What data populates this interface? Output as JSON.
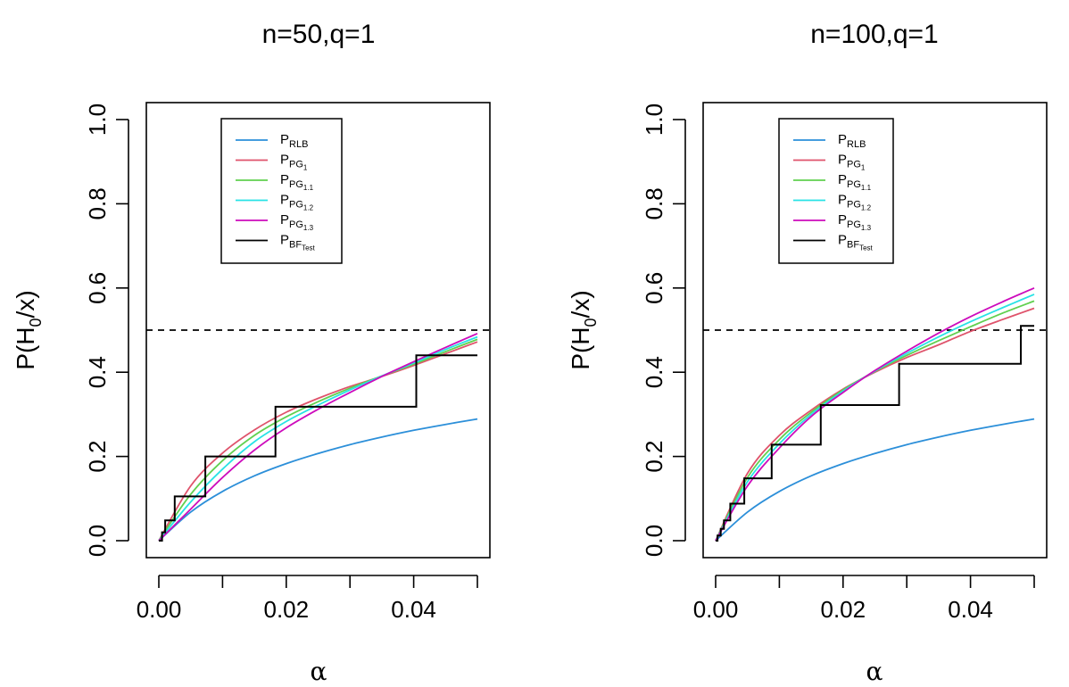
{
  "colors": {
    "RLB": "#2c8fd9",
    "PG1": "#df536b",
    "PG1.1": "#61d04f",
    "PG1.2": "#28e2e5",
    "PG1.3": "#cd0bbc",
    "BFTest": "#000000",
    "reference": "#000000"
  },
  "chart_data": [
    {
      "type": "line",
      "title": "n=50,q=1",
      "xlabel": "α",
      "ylabel_parts": {
        "pre": "P(H",
        "sub": "0",
        "post": "/x)"
      },
      "xlim": [
        0,
        0.05
      ],
      "ylim": [
        0,
        1
      ],
      "xticks": [
        0,
        0.01,
        0.02,
        0.03,
        0.04,
        0.05
      ],
      "xtick_labels": [
        {
          "value": 0,
          "label": "0.00"
        },
        {
          "value": 0.02,
          "label": "0.02"
        },
        {
          "value": 0.04,
          "label": "0.04"
        }
      ],
      "yticks": [
        {
          "value": 0,
          "label": "0.0"
        },
        {
          "value": 0.2,
          "label": "0.2"
        },
        {
          "value": 0.4,
          "label": "0.4"
        },
        {
          "value": 0.6,
          "label": "0.6"
        },
        {
          "value": 0.8,
          "label": "0.8"
        },
        {
          "value": 1.0,
          "label": "1.0"
        }
      ],
      "reference_line": {
        "y": 0.5,
        "style": "dashed"
      },
      "legend_position": "top",
      "series": [
        {
          "name": "RLB",
          "label_main": "P",
          "label_sub": "RLB",
          "label_sub2": "",
          "color_key": "RLB",
          "style": "line",
          "x": [
            0,
            0.005,
            0.01,
            0.015,
            0.02,
            0.025,
            0.03,
            0.035,
            0.04,
            0.045,
            0.05
          ],
          "y": [
            0,
            0.068,
            0.117,
            0.154,
            0.183,
            0.207,
            0.228,
            0.246,
            0.262,
            0.276,
            0.289
          ]
        },
        {
          "name": "PG1",
          "label_main": "P",
          "label_sub": "PG",
          "label_sub2": "1",
          "color_key": "PG1",
          "style": "line",
          "x": [
            0,
            0.005,
            0.01,
            0.015,
            0.02,
            0.025,
            0.03,
            0.035,
            0.04,
            0.045,
            0.05
          ],
          "y": [
            0,
            0.13,
            0.208,
            0.263,
            0.305,
            0.338,
            0.366,
            0.39,
            0.416,
            0.444,
            0.472
          ]
        },
        {
          "name": "PG1.1",
          "label_main": "P",
          "label_sub": "PG",
          "label_sub2": "1.1",
          "color_key": "PG1.1",
          "style": "line",
          "x": [
            0,
            0.005,
            0.01,
            0.015,
            0.02,
            0.025,
            0.03,
            0.035,
            0.04,
            0.045,
            0.05
          ],
          "y": [
            0,
            0.11,
            0.19,
            0.25,
            0.294,
            0.33,
            0.362,
            0.391,
            0.419,
            0.449,
            0.478
          ]
        },
        {
          "name": "PG1.2",
          "label_main": "P",
          "label_sub": "PG",
          "label_sub2": "1.2",
          "color_key": "PG1.2",
          "style": "line",
          "x": [
            0,
            0.005,
            0.01,
            0.015,
            0.02,
            0.025,
            0.03,
            0.035,
            0.04,
            0.045,
            0.05
          ],
          "y": [
            0,
            0.092,
            0.17,
            0.235,
            0.283,
            0.322,
            0.358,
            0.391,
            0.422,
            0.454,
            0.484
          ]
        },
        {
          "name": "PG1.3",
          "label_main": "P",
          "label_sub": "PG",
          "label_sub2": "1.3",
          "color_key": "PG1.3",
          "style": "line",
          "x": [
            0,
            0.005,
            0.01,
            0.015,
            0.02,
            0.025,
            0.03,
            0.035,
            0.04,
            0.045,
            0.05
          ],
          "y": [
            0,
            0.075,
            0.15,
            0.215,
            0.268,
            0.312,
            0.352,
            0.39,
            0.425,
            0.459,
            0.492
          ]
        },
        {
          "name": "BFTest",
          "label_main": "P",
          "label_sub": "BF",
          "label_sub2": "Test",
          "color_key": "BFTest",
          "style": "step",
          "x": [
            0,
            0.0005,
            0.001,
            0.0025,
            0.0073,
            0.0183,
            0.0404,
            0.05
          ],
          "y": [
            0,
            0.02,
            0.048,
            0.105,
            0.2,
            0.318,
            0.44,
            0.44
          ]
        }
      ]
    },
    {
      "type": "line",
      "title": "n=100,q=1",
      "xlabel": "α",
      "ylabel_parts": {
        "pre": "P(H",
        "sub": "0",
        "post": "/x)"
      },
      "xlim": [
        0,
        0.05
      ],
      "ylim": [
        0,
        1
      ],
      "xticks": [
        0,
        0.01,
        0.02,
        0.03,
        0.04,
        0.05
      ],
      "xtick_labels": [
        {
          "value": 0,
          "label": "0.00"
        },
        {
          "value": 0.02,
          "label": "0.02"
        },
        {
          "value": 0.04,
          "label": "0.04"
        }
      ],
      "yticks": [
        {
          "value": 0,
          "label": "0.0"
        },
        {
          "value": 0.2,
          "label": "0.2"
        },
        {
          "value": 0.4,
          "label": "0.4"
        },
        {
          "value": 0.6,
          "label": "0.6"
        },
        {
          "value": 0.8,
          "label": "0.8"
        },
        {
          "value": 1.0,
          "label": "1.0"
        }
      ],
      "reference_line": {
        "y": 0.5,
        "style": "dashed"
      },
      "legend_position": "top",
      "series": [
        {
          "name": "RLB",
          "label_main": "P",
          "label_sub": "RLB",
          "label_sub2": "",
          "color_key": "RLB",
          "style": "line",
          "x": [
            0,
            0.005,
            0.01,
            0.015,
            0.02,
            0.025,
            0.03,
            0.035,
            0.04,
            0.045,
            0.05
          ],
          "y": [
            0,
            0.068,
            0.117,
            0.154,
            0.183,
            0.207,
            0.228,
            0.246,
            0.262,
            0.276,
            0.289
          ]
        },
        {
          "name": "PG1",
          "label_main": "P",
          "label_sub": "PG",
          "label_sub2": "1",
          "color_key": "PG1",
          "style": "line",
          "x": [
            0,
            0.005,
            0.01,
            0.015,
            0.02,
            0.025,
            0.03,
            0.035,
            0.04,
            0.045,
            0.05
          ],
          "y": [
            0,
            0.16,
            0.25,
            0.31,
            0.36,
            0.4,
            0.435,
            0.465,
            0.497,
            0.525,
            0.552
          ]
        },
        {
          "name": "PG1.1",
          "label_main": "P",
          "label_sub": "PG",
          "label_sub2": "1.1",
          "color_key": "PG1.1",
          "style": "line",
          "x": [
            0,
            0.005,
            0.01,
            0.015,
            0.02,
            0.025,
            0.03,
            0.035,
            0.04,
            0.045,
            0.05
          ],
          "y": [
            0,
            0.15,
            0.24,
            0.305,
            0.358,
            0.402,
            0.44,
            0.475,
            0.508,
            0.54,
            0.569
          ]
        },
        {
          "name": "PG1.2",
          "label_main": "P",
          "label_sub": "PG",
          "label_sub2": "1.2",
          "color_key": "PG1.2",
          "style": "line",
          "x": [
            0,
            0.005,
            0.01,
            0.015,
            0.02,
            0.025,
            0.03,
            0.035,
            0.04,
            0.045,
            0.05
          ],
          "y": [
            0,
            0.14,
            0.23,
            0.3,
            0.355,
            0.403,
            0.445,
            0.484,
            0.52,
            0.553,
            0.585
          ]
        },
        {
          "name": "PG1.3",
          "label_main": "P",
          "label_sub": "PG",
          "label_sub2": "1.3",
          "color_key": "PG1.3",
          "style": "line",
          "x": [
            0,
            0.005,
            0.01,
            0.015,
            0.02,
            0.025,
            0.03,
            0.035,
            0.04,
            0.045,
            0.05
          ],
          "y": [
            0,
            0.13,
            0.22,
            0.295,
            0.352,
            0.404,
            0.45,
            0.493,
            0.532,
            0.567,
            0.6
          ]
        },
        {
          "name": "BFTest",
          "label_main": "P",
          "label_sub": "BF",
          "label_sub2": "Test",
          "color_key": "BFTest",
          "style": "step",
          "x": [
            0,
            0.0003,
            0.0008,
            0.0013,
            0.0023,
            0.0045,
            0.0088,
            0.0165,
            0.0288,
            0.0479,
            0.05
          ],
          "y": [
            0,
            0.012,
            0.028,
            0.048,
            0.088,
            0.148,
            0.228,
            0.322,
            0.42,
            0.51,
            0.51
          ]
        }
      ]
    }
  ]
}
